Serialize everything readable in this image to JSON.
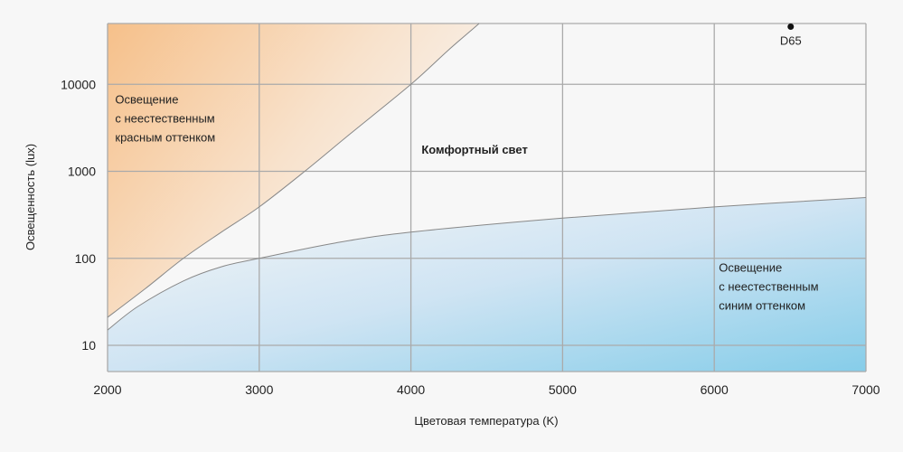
{
  "chart_data": {
    "type": "area",
    "title": "",
    "xlabel": "Цветовая температура (K)",
    "ylabel": "Освещенность (lux)",
    "xlim": [
      2000,
      7000
    ],
    "ylim": [
      5,
      50000
    ],
    "yscale": "log",
    "grid": true,
    "x_ticks": [
      2000,
      3000,
      4000,
      5000,
      6000,
      7000
    ],
    "y_ticks": [
      10,
      100,
      1000,
      10000
    ],
    "x_tick_labels": [
      "2000",
      "3000",
      "4000",
      "5000",
      "6000",
      "7000"
    ],
    "y_tick_labels": [
      "10",
      "100",
      "1000",
      "10000"
    ],
    "series": [
      {
        "name": "upper-boundary",
        "x": [
          2000,
          2250,
          2500,
          2750,
          3000,
          3300,
          3600,
          4000,
          4250,
          4450
        ],
        "y": [
          21,
          45,
          100,
          200,
          390,
          1000,
          2700,
          10000,
          25000,
          50000
        ]
      },
      {
        "name": "lower-boundary",
        "x": [
          2000,
          2200,
          2500,
          2750,
          3000,
          3500,
          4000,
          5000,
          6000,
          7000
        ],
        "y": [
          15,
          28,
          55,
          80,
          100,
          150,
          200,
          290,
          390,
          500
        ]
      }
    ],
    "regions": [
      {
        "name": "red-tint-region",
        "label_lines": [
          "Освещение",
          "с неестественным",
          "красным оттенком"
        ],
        "color": "#f6c08a",
        "anchor": [
          2050,
          6000
        ]
      },
      {
        "name": "comfort-region",
        "label_lines": [
          "Комфортный свет"
        ],
        "anchor": [
          4070,
          1600
        ]
      },
      {
        "name": "blue-tint-region",
        "label_lines": [
          "Освещение",
          "с неестественным",
          "синим оттенком"
        ],
        "color": "#86cde9",
        "anchor": [
          6030,
          70
        ]
      }
    ],
    "points": [
      {
        "name": "D65",
        "label": "D65",
        "x": 6504,
        "y": 46000
      }
    ]
  }
}
